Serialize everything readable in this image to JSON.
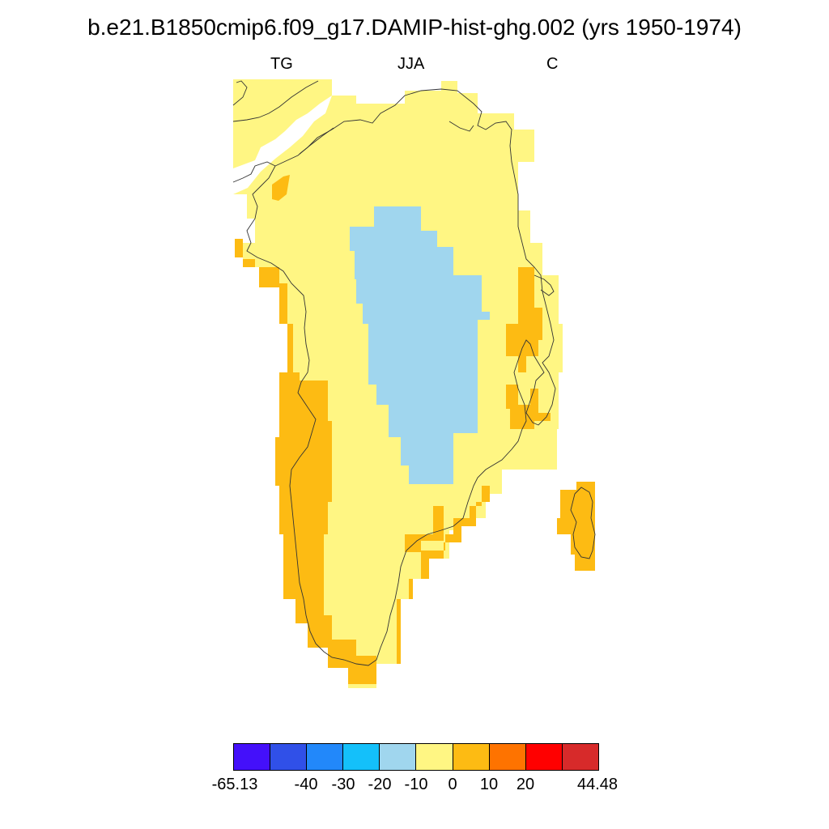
{
  "title": "b.e21.B1850cmip6.f09_g17.DAMIP-hist-ghg.002 (yrs 1950-1974)",
  "left_label": "TG",
  "center_label": "JJA",
  "right_label": "C",
  "colors": {
    "c_m65": "#4410fa",
    "c_m40": "#3050e8",
    "c_m30": "#2288fa",
    "c_m20": "#14c0fa",
    "c_m10": "#a0d6ee",
    "c_0": "#fff683",
    "c_10": "#fdbb13",
    "c_20": "#fe7300",
    "c_30": "#ff0000",
    "c_40": "#d72a2a",
    "coast": "#333333"
  },
  "colorbar": {
    "labels": [
      "-65.13",
      "-40",
      "-30",
      "-20",
      "-10",
      "0",
      "10",
      "20",
      "44.48"
    ]
  }
}
